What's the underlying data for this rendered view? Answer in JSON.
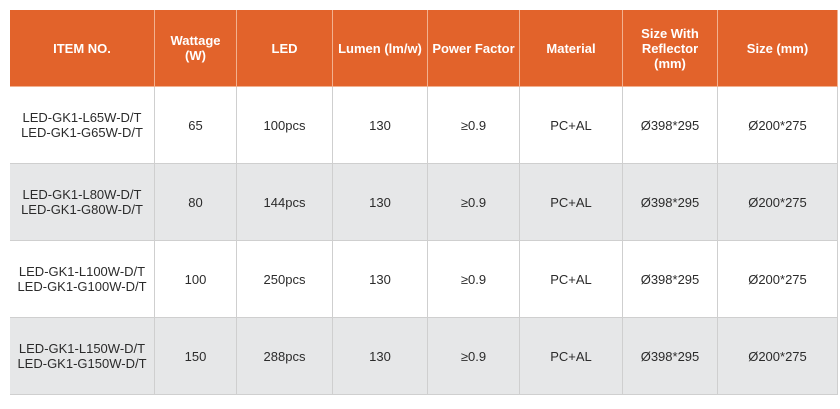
{
  "table": {
    "columns": [
      "ITEM NO.",
      "Wattage (W)",
      "LED",
      "Lumen (lm/w)",
      "Power Factor",
      "Material",
      "Size With Reflector (mm)",
      "Size (mm)"
    ],
    "rows": [
      [
        [
          "LED-GK1-L65W-D/T",
          "LED-GK1-G65W-D/T"
        ],
        "65",
        "100pcs",
        "130",
        "≥0.9",
        "PC+AL",
        "Ø398*295",
        "Ø200*275"
      ],
      [
        [
          "LED-GK1-L80W-D/T",
          "LED-GK1-G80W-D/T"
        ],
        "80",
        "144pcs",
        "130",
        "≥0.9",
        "PC+AL",
        "Ø398*295",
        "Ø200*275"
      ],
      [
        [
          "LED-GK1-L100W-D/T",
          "LED-GK1-G100W-D/T"
        ],
        "100",
        "250pcs",
        "130",
        "≥0.9",
        "PC+AL",
        "Ø398*295",
        "Ø200*275"
      ],
      [
        [
          "LED-GK1-L150W-D/T",
          "LED-GK1-G150W-D/T"
        ],
        "150",
        "288pcs",
        "130",
        "≥0.9",
        "PC+AL",
        "Ø398*295",
        "Ø200*275"
      ]
    ]
  }
}
